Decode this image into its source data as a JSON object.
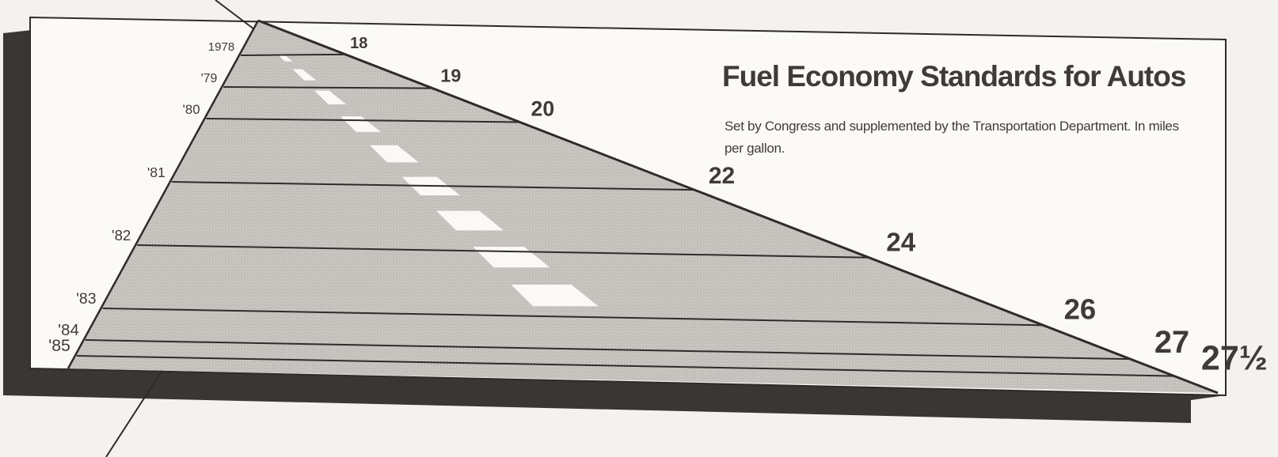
{
  "chart_data": {
    "type": "area",
    "title": "Fuel Economy Standards for Autos",
    "subtitle": "Set by Congress and supplemented by the Transportation Department. In miles per gallon.",
    "xlabel": "",
    "ylabel": "",
    "unit": "miles per gallon",
    "points": [
      {
        "year": "1978",
        "value": 18,
        "label": "18"
      },
      {
        "year": "'79",
        "value": 19,
        "label": "19"
      },
      {
        "year": "'80",
        "value": 20,
        "label": "20"
      },
      {
        "year": "'81",
        "value": 22,
        "label": "22"
      },
      {
        "year": "'82",
        "value": 24,
        "label": "24"
      },
      {
        "year": "'83",
        "value": 26,
        "label": "26"
      },
      {
        "year": "'84",
        "value": 27,
        "label": "27"
      },
      {
        "year": "'85",
        "value": 27.5,
        "label": "27½"
      }
    ],
    "colors": {
      "road": "#c4c1bc",
      "stripe": "#faf9f6",
      "ink": "#2f2b2a",
      "shadow": "#3a3634",
      "board": "#fbfaf7"
    }
  }
}
